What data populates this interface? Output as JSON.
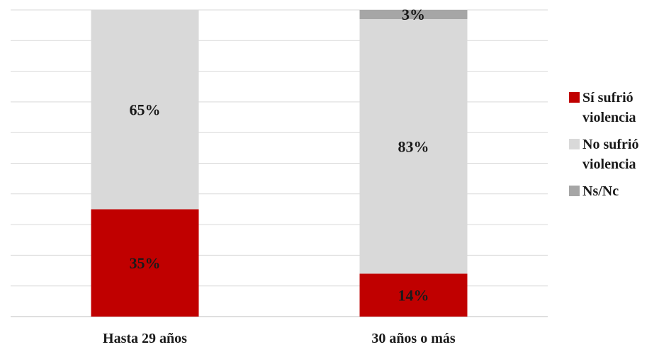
{
  "chart_data": {
    "type": "bar",
    "stacked": true,
    "categories": [
      "Hasta 29 años",
      "30 años o más"
    ],
    "series": [
      {
        "name": "Sí sufrió violencia",
        "values": [
          35,
          14
        ],
        "labels": [
          "35%",
          "14%"
        ],
        "color": "#c00000"
      },
      {
        "name": "No sufrió violencia",
        "values": [
          65,
          83
        ],
        "labels": [
          "65%",
          "83%"
        ],
        "color": "#d9d9d9"
      },
      {
        "name": "Ns/Nc",
        "values": [
          0,
          3
        ],
        "labels": [
          "",
          "3%"
        ],
        "color": "#a6a6a6"
      }
    ],
    "ylim": [
      0,
      100
    ],
    "grid": true,
    "legend_position": "right"
  }
}
